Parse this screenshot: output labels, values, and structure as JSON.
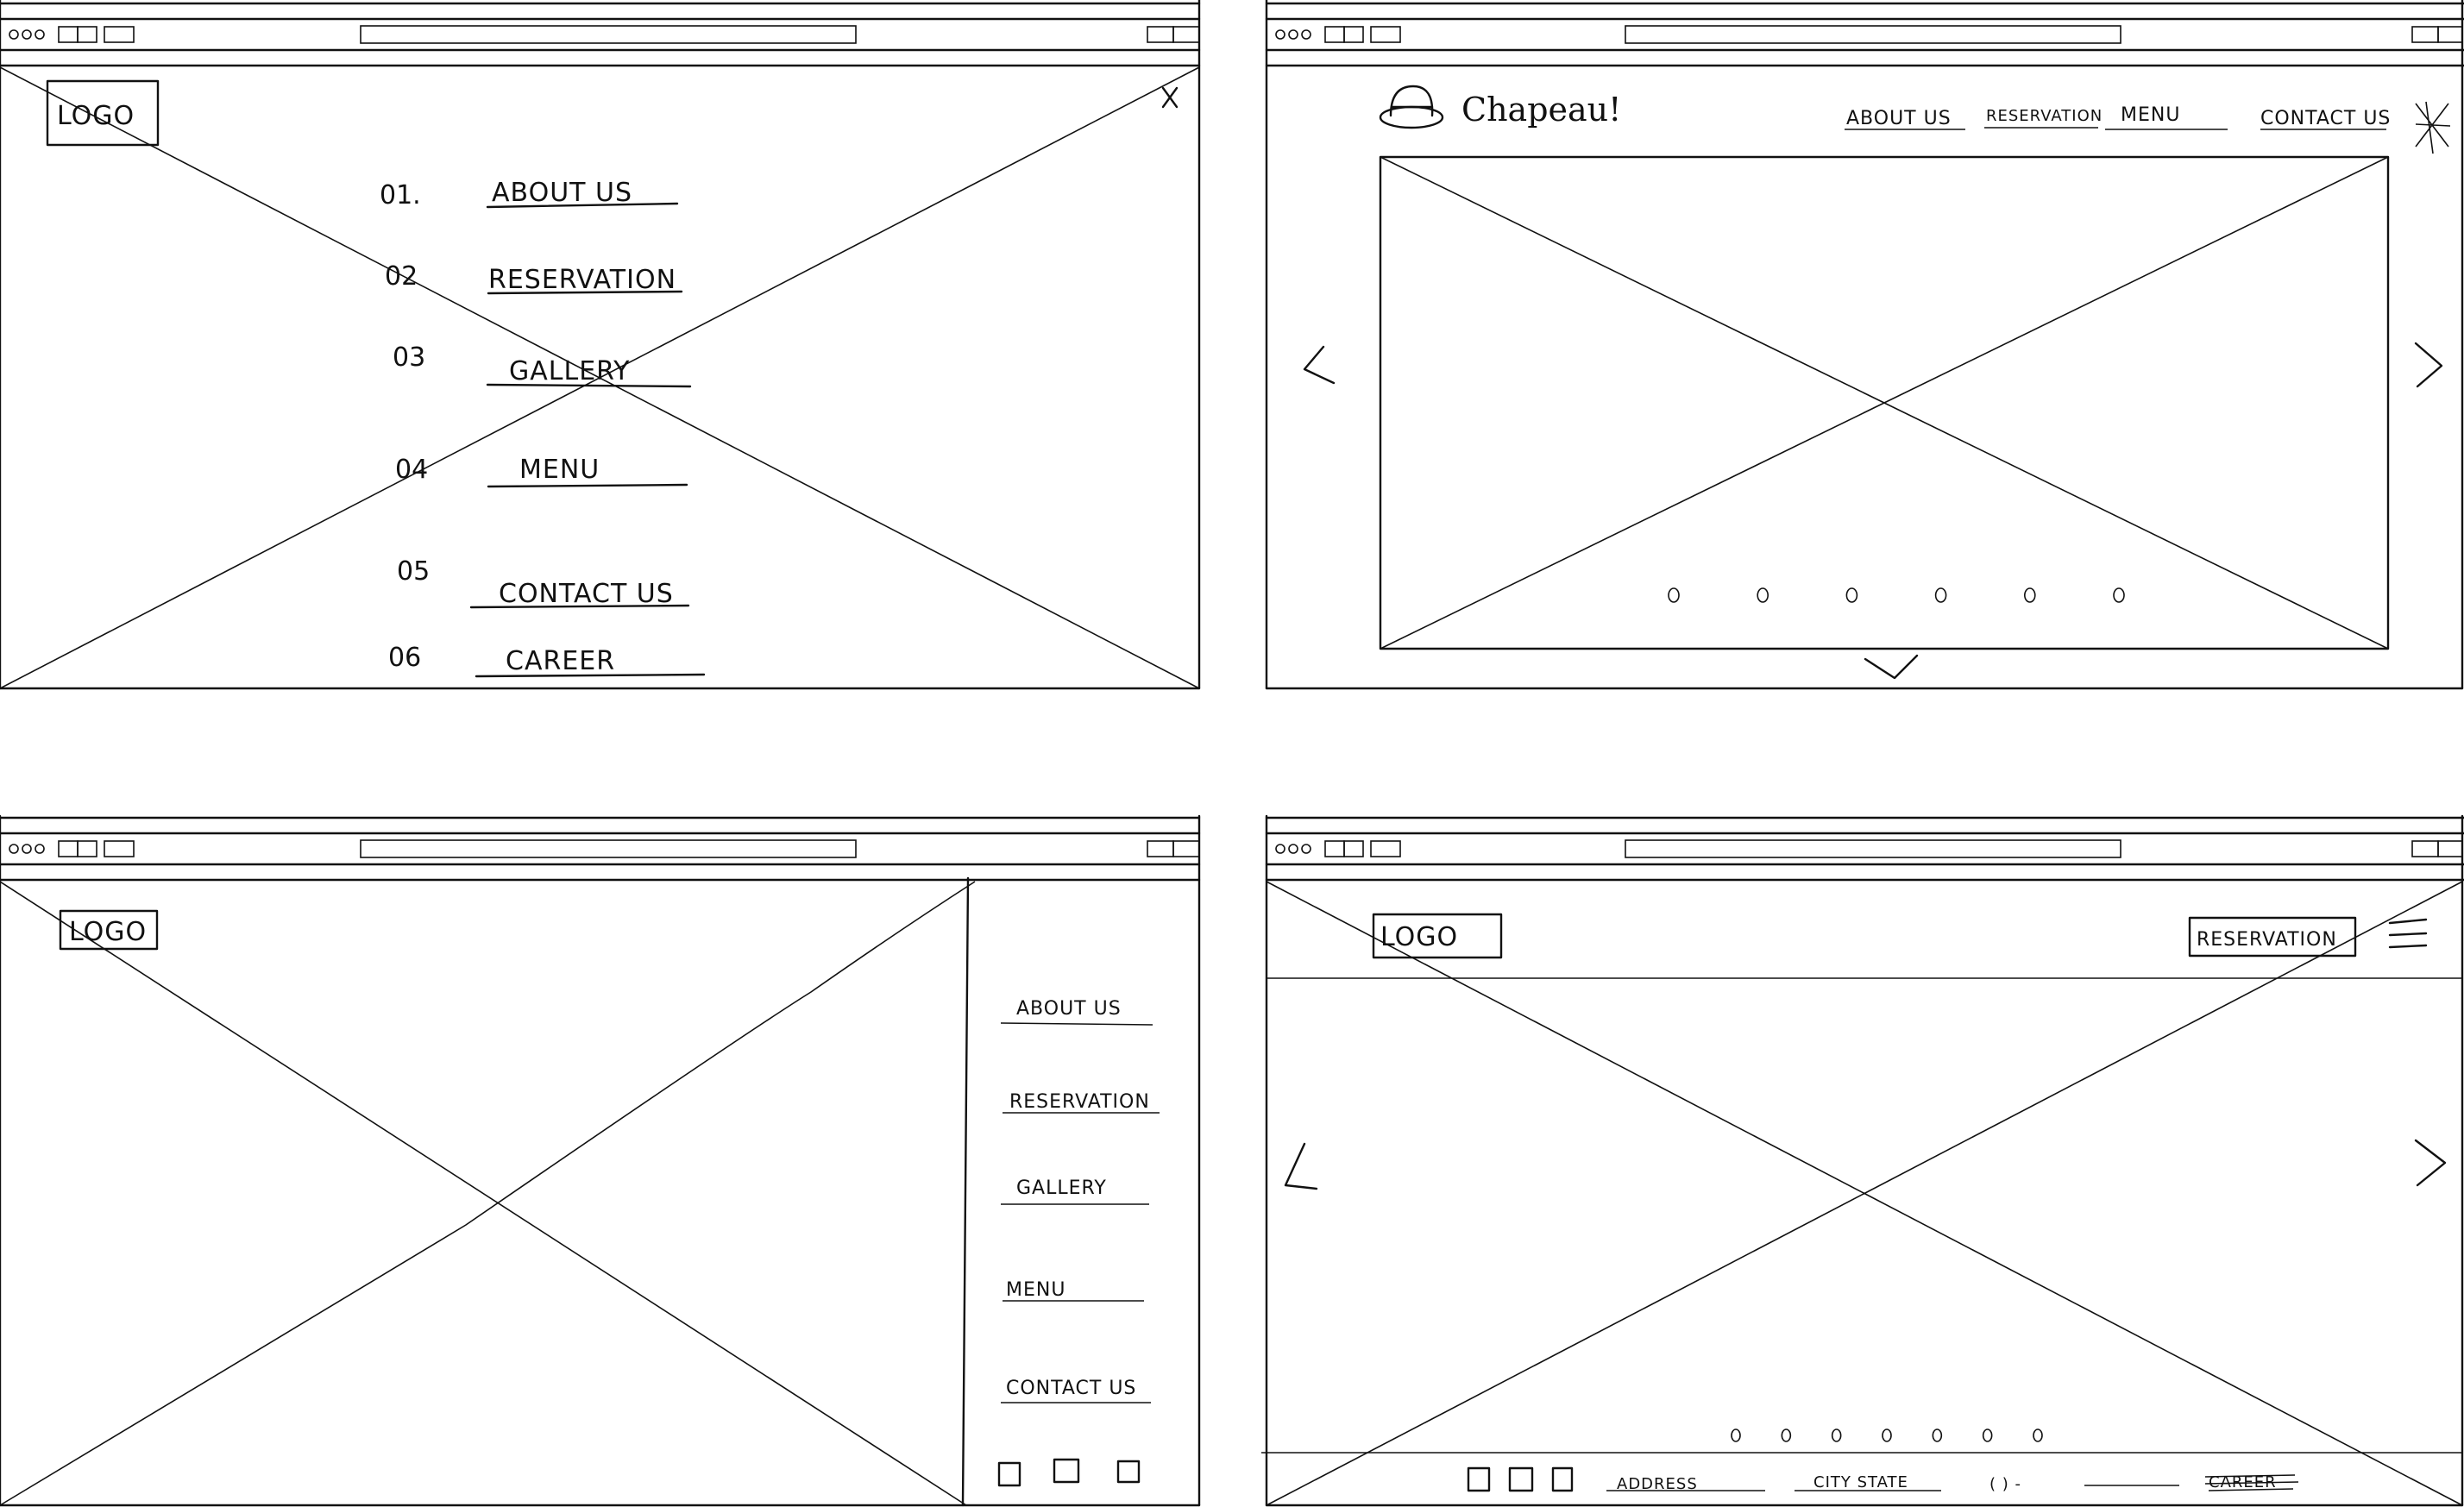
{
  "panel_1": {
    "logo": "LOGO",
    "close_icon": "close-icon",
    "menu_items": [
      {
        "number": "01.",
        "label": "ABOUT US"
      },
      {
        "number": "02",
        "label": "RESERVATION"
      },
      {
        "number": "03",
        "label": "GALLERY"
      },
      {
        "number": "04",
        "label": "MENU"
      },
      {
        "number": "05",
        "label": "CONTACT US"
      },
      {
        "number": "06",
        "label": "CAREER"
      }
    ]
  },
  "panel_2": {
    "brand": "Chapeau!",
    "brand_icon": "hat-icon",
    "nav": [
      "ABOUT US",
      "RESERVATION",
      "MENU",
      "CONTACT US"
    ],
    "prev_icon": "chevron-left-icon",
    "next_icon": "chevron-right-icon",
    "scroll_icon": "chevron-down-icon",
    "slide_count": 6
  },
  "panel_3": {
    "logo": "LOGO",
    "sidebar_items": [
      "ABOUT US",
      "RESERVATION",
      "GALLERY",
      "MENU",
      "CONTACT US"
    ],
    "social_icons": [
      "social-icon",
      "social-icon",
      "social-icon"
    ]
  },
  "panel_4": {
    "logo": "LOGO",
    "reservation_button": "RESERVATION",
    "menu_icon": "hamburger-icon",
    "prev_icon": "chevron-left-icon",
    "next_icon": "chevron-right-icon",
    "slide_count": 7,
    "footer": {
      "address": "ADDRESS",
      "city_state": "CITY   STATE",
      "phone": "(   ) -",
      "career": "CAREER"
    }
  }
}
